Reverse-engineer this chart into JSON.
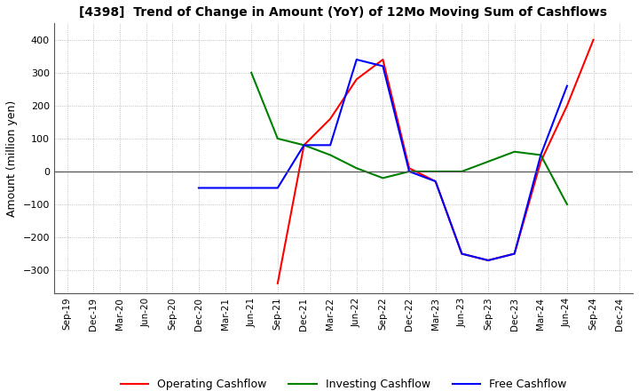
{
  "title": "[4398]  Trend of Change in Amount (YoY) of 12Mo Moving Sum of Cashflows",
  "ylabel": "Amount (million yen)",
  "ylim": [
    -370,
    450
  ],
  "yticks": [
    -300,
    -200,
    -100,
    0,
    100,
    200,
    300,
    400
  ],
  "x_labels": [
    "Sep-19",
    "Dec-19",
    "Mar-20",
    "Jun-20",
    "Sep-20",
    "Dec-20",
    "Mar-21",
    "Jun-21",
    "Sep-21",
    "Dec-21",
    "Mar-22",
    "Jun-22",
    "Sep-22",
    "Dec-22",
    "Mar-23",
    "Jun-23",
    "Sep-23",
    "Dec-23",
    "Mar-24",
    "Jun-24",
    "Sep-24",
    "Dec-24"
  ],
  "operating_x": [
    8,
    9,
    10,
    11,
    12,
    13,
    14,
    15,
    16,
    17,
    18,
    19,
    20
  ],
  "operating_y": [
    -340,
    80,
    160,
    280,
    340,
    10,
    -30,
    -250,
    -270,
    -250,
    30,
    200,
    400
  ],
  "investing_x": [
    7,
    8,
    9,
    10,
    11,
    12,
    13,
    14,
    15,
    16,
    17,
    18,
    19
  ],
  "investing_y": [
    300,
    100,
    80,
    50,
    10,
    -20,
    0,
    0,
    0,
    30,
    60,
    50,
    -100
  ],
  "free_x": [
    5,
    8,
    9,
    10,
    11,
    12,
    13,
    14,
    15,
    16,
    17,
    18,
    19
  ],
  "free_y": [
    -50,
    -50,
    80,
    80,
    340,
    320,
    0,
    -30,
    -250,
    -270,
    -250,
    50,
    260
  ],
  "operating_color": "#ff0000",
  "investing_color": "#008000",
  "free_color": "#0000ff",
  "legend_labels": [
    "Operating Cashflow",
    "Investing Cashflow",
    "Free Cashflow"
  ],
  "background_color": "#ffffff",
  "grid_color": "#b0b0b0"
}
